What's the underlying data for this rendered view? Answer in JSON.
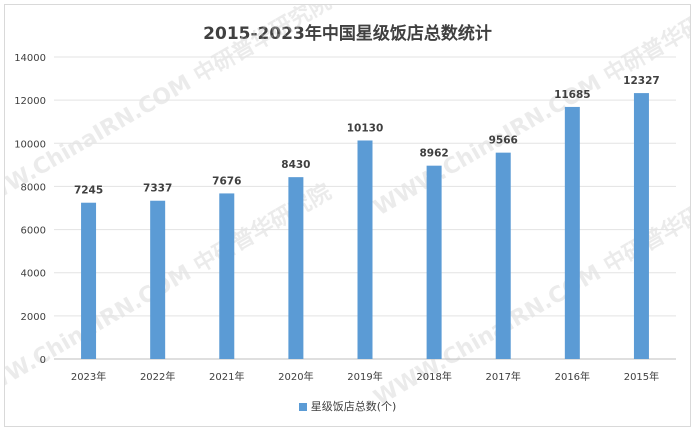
{
  "chart_data": {
    "type": "bar",
    "title": "2015-2023年中国星级饭店总数统计",
    "categories": [
      "2023年",
      "2022年",
      "2021年",
      "2020年",
      "2019年",
      "2018年",
      "2017年",
      "2016年",
      "2015年"
    ],
    "series": [
      {
        "name": "星级饭店总数(个)",
        "values": [
          7245,
          7337,
          7676,
          8430,
          10130,
          8962,
          9566,
          11685,
          12327
        ],
        "color": "#5b9bd5"
      }
    ],
    "yticks": [
      0,
      2000,
      4000,
      6000,
      8000,
      10000,
      12000,
      14000
    ],
    "ylim": [
      0,
      14000
    ],
    "xlabel": "",
    "ylabel": "",
    "grid": true,
    "legend": "bottom",
    "data_labels": true
  },
  "watermark": "WWW.ChinaIRN.COM 中研普华研究院"
}
